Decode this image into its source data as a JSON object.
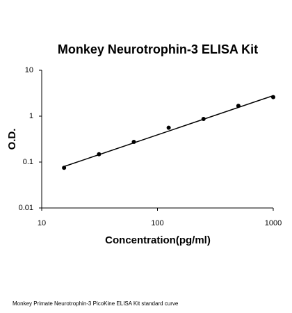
{
  "chart_data": {
    "type": "scatter",
    "title": "Monkey Neurotrophin-3 ELISA Kit",
    "xlabel": "Concentration(pg/ml)",
    "ylabel": "O.D.",
    "caption": "Monkey Primate Neurotrophin-3 PicoKine ELISA Kit standard curve",
    "x": [
      15.6,
      31.25,
      62.5,
      125,
      250,
      500,
      1000
    ],
    "values": [
      0.075,
      0.148,
      0.275,
      0.56,
      0.87,
      1.68,
      2.6
    ],
    "trendline": {
      "x": [
        15.6,
        1000
      ],
      "y": [
        0.08,
        2.8
      ]
    },
    "color": "#000000",
    "xscale": "log",
    "yscale": "log",
    "xlim": [
      10,
      1000
    ],
    "ylim": [
      0.01,
      10
    ],
    "xticks": [
      10,
      100,
      1000
    ],
    "yticks": [
      0.01,
      0.1,
      1,
      10
    ]
  }
}
